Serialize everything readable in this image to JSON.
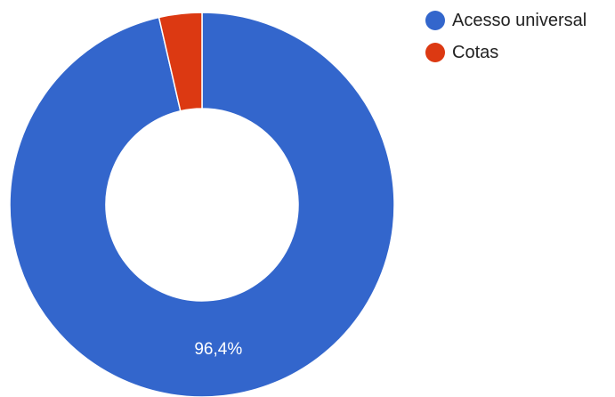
{
  "chart_data": {
    "type": "pie",
    "donut": true,
    "legend_position": "top-right",
    "categories": [
      "Acesso universal",
      "Cotas"
    ],
    "values": [
      96.4,
      3.6
    ],
    "colors": [
      "#3366cc",
      "#dc3912"
    ],
    "data_labels": [
      "96,4%",
      ""
    ]
  }
}
